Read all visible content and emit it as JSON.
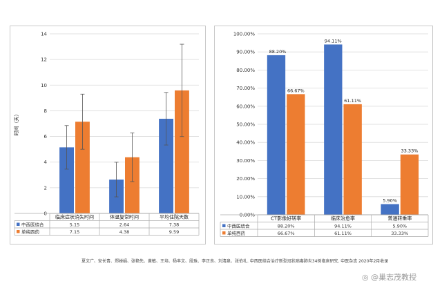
{
  "colors": {
    "blue": "#4472c4",
    "orange": "#ed7d31",
    "error": "#555555",
    "grid": "#d9d9d9"
  },
  "chart_data": [
    {
      "type": "bar",
      "ylabel": "时间（天）",
      "ylim": [
        0,
        14
      ],
      "yticks": [
        0,
        2,
        4,
        6,
        8,
        10,
        12,
        14
      ],
      "categories": [
        "临床症状消失时间",
        "体温复常时间",
        "平均住院天数"
      ],
      "series": [
        {
          "name": "中西医结合",
          "values": [
            5.15,
            2.64,
            7.38
          ],
          "errors": [
            1.7,
            1.35,
            2.05
          ],
          "color": "#4472c4"
        },
        {
          "name": "单纯西药",
          "values": [
            7.15,
            4.38,
            9.59
          ],
          "errors": [
            2.15,
            1.9,
            3.6
          ],
          "color": "#ed7d31"
        }
      ],
      "table": [
        [
          "5.15",
          "2.64",
          "7.38"
        ],
        [
          "7.15",
          "4.38",
          "9.59"
        ]
      ],
      "grid": true
    },
    {
      "type": "bar",
      "ylim": [
        0,
        100
      ],
      "yticks": [
        "0.00%",
        "10.00%",
        "20.00%",
        "30.00%",
        "40.00%",
        "50.00%",
        "60.00%",
        "70.00%",
        "80.00%",
        "90.00%",
        "100.00%"
      ],
      "categories": [
        "CT影像好转率",
        "临床治愈率",
        "普通转重率"
      ],
      "series": [
        {
          "name": "中西医结合",
          "values": [
            88.2,
            94.11,
            5.9
          ],
          "labels": [
            "88.20%",
            "94.11%",
            "5.90%"
          ],
          "color": "#4472c4"
        },
        {
          "name": "单纯西药",
          "values": [
            66.67,
            61.11,
            33.33
          ],
          "labels": [
            "66.67%",
            "61.11%",
            "33.33%"
          ],
          "color": "#ed7d31"
        }
      ],
      "table": [
        [
          "88.20%",
          "94.11%",
          "5.90%"
        ],
        [
          "66.67%",
          "61.11%",
          "33.33%"
        ]
      ],
      "grid": true
    }
  ],
  "footer": {
    "citation": "夏文广、安长青、郑婵娟、张艳先、黄敏、王培、杨丰文、段珠、李正良、刘清泉、张伯礼. 中西医结合治疗新型冠状病毒肺炎34例临床研究. 中医杂志 2020年2月收录",
    "watermark": "◎ @巢志茂教授"
  }
}
